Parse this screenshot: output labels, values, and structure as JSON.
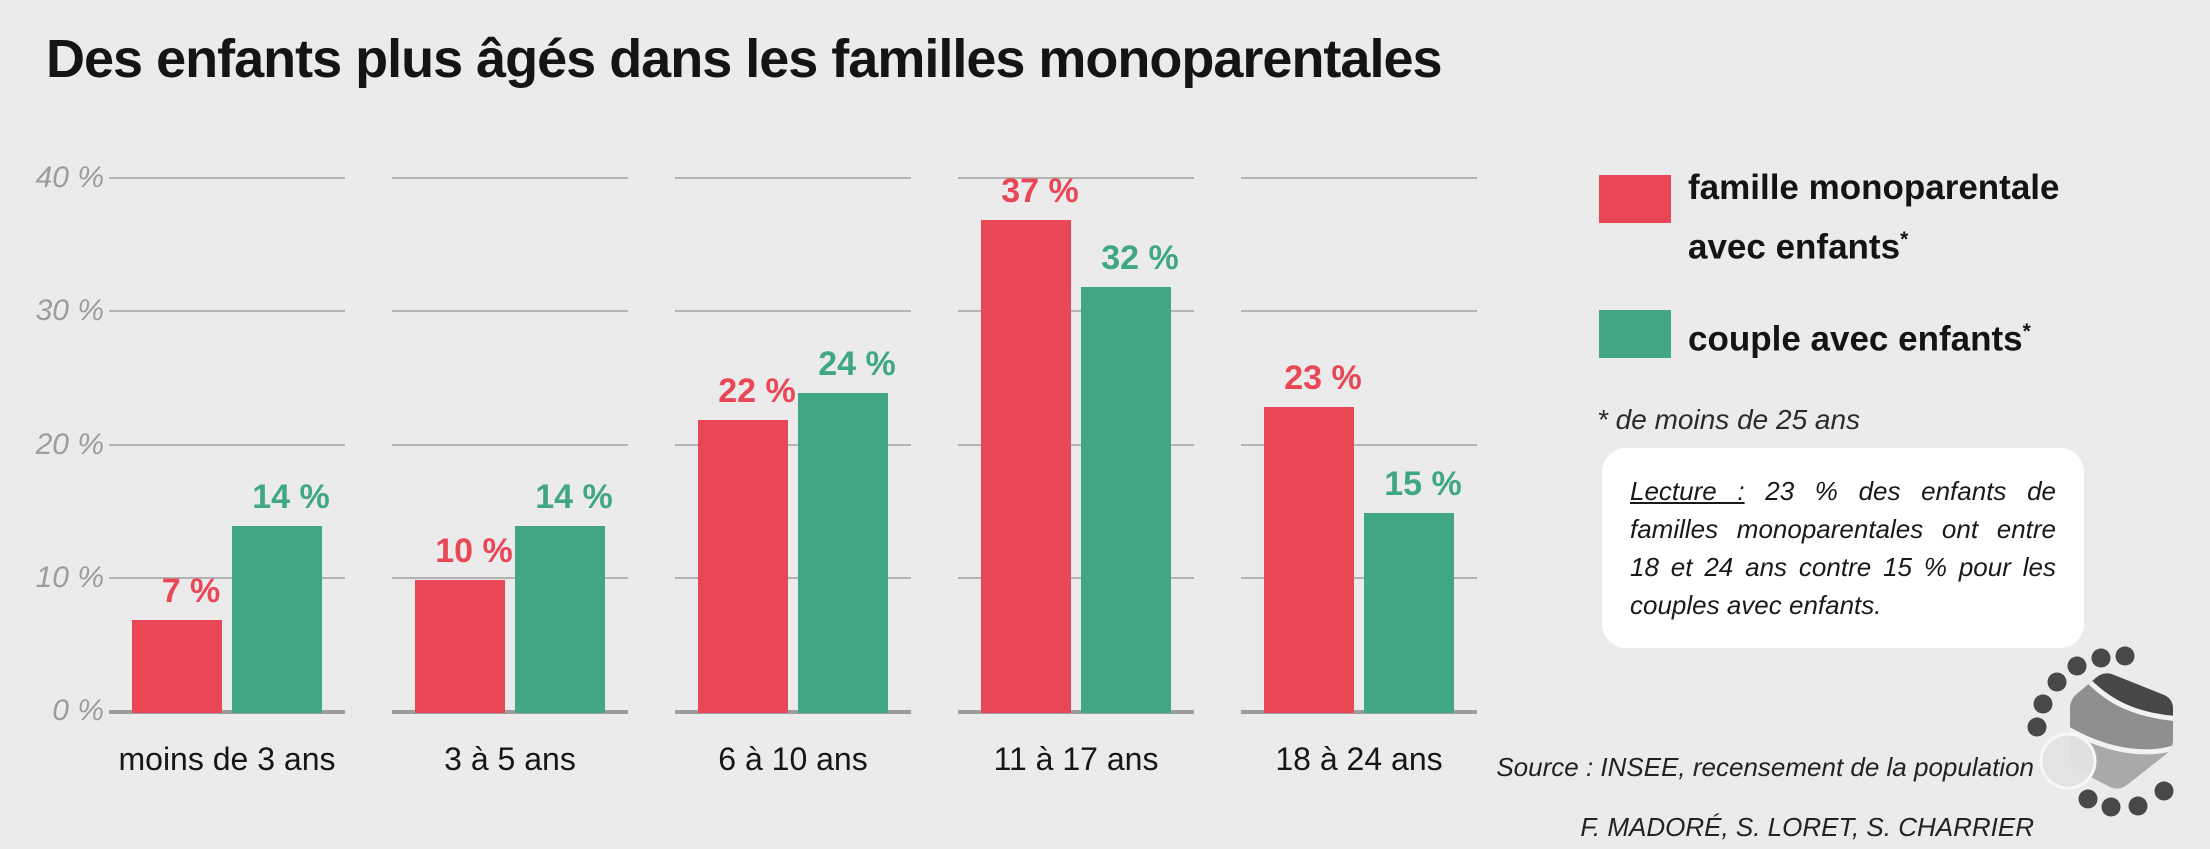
{
  "title": "Des enfants plus âgés dans les familles monoparentales",
  "colors": {
    "background": "#ebebeb",
    "monoparentale_red": "#e94756",
    "couple_green": "#40a685",
    "gridline": "#b3b3b3",
    "axis_line": "#9d9d9d",
    "axis_text": "#9c9c9c",
    "text": "#141414",
    "lecture_box_bg": "#ffffff"
  },
  "chart_data": {
    "type": "bar",
    "title": "Des enfants plus âgés dans les familles monoparentales",
    "categories": [
      "moins de 3 ans",
      "3 à 5 ans",
      "6 à 10 ans",
      "11 à 17 ans",
      "18 à 24 ans"
    ],
    "series": [
      {
        "name": "famille monoparentale avec enfants*",
        "color": "#e94756",
        "values": [
          7,
          10,
          22,
          37,
          23
        ]
      },
      {
        "name": "couple avec enfants*",
        "color": "#40a685",
        "values": [
          14,
          14,
          24,
          32,
          15
        ]
      }
    ],
    "unit": "%",
    "value_label_suffix": " %",
    "ylim": [
      0,
      40
    ],
    "yticks": [
      0,
      10,
      20,
      30,
      40
    ],
    "ytick_labels": [
      "0 %",
      "10 %",
      "20 %",
      "30 %",
      "40 %"
    ],
    "grid": true,
    "grid_style": "horizontal segments per category group",
    "legend_position": "right",
    "footnote": "* de moins de 25 ans"
  },
  "legend": {
    "items": [
      {
        "line1": "famille monoparentale",
        "line2": "avec enfants",
        "sup": "*",
        "color": "#e94756"
      },
      {
        "line1": "couple avec enfants",
        "sup": "*",
        "color": "#40a685"
      }
    ],
    "footnote": "* de moins de 25 ans"
  },
  "lecture_box": {
    "label": "Lecture :",
    "text": " 23 % des enfants de familles monoparentales ont entre 18 et 24 ans contre 15 % pour les couples avec enfants."
  },
  "source": {
    "line1": "Source : INSEE, recensement de la population",
    "line2": "F. MADORÉ, S. LORET, S. CHARRIER"
  }
}
